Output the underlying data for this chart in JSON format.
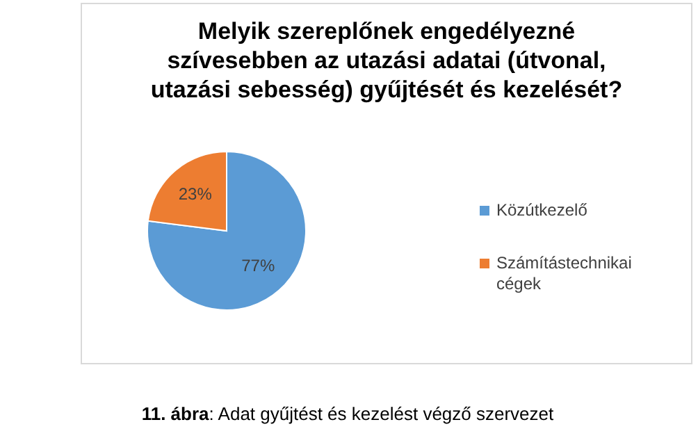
{
  "chart_data": {
    "type": "pie",
    "title": "Melyik szereplőnek engedélyezné szívesebben az utazási adatai (útvonal, utazási sebesség) gyűjtését és kezelését?",
    "categories": [
      "Közútkezelő",
      "Számítástechnikai cégek"
    ],
    "values": [
      77,
      23
    ],
    "colors": [
      "#5b9bd5",
      "#ed7d31"
    ],
    "value_labels": [
      "77%",
      "23%"
    ],
    "legend": "right",
    "annotations": [
      "11. ábra: Adat gyűjtést és kezelést végző szervezet"
    ]
  }
}
